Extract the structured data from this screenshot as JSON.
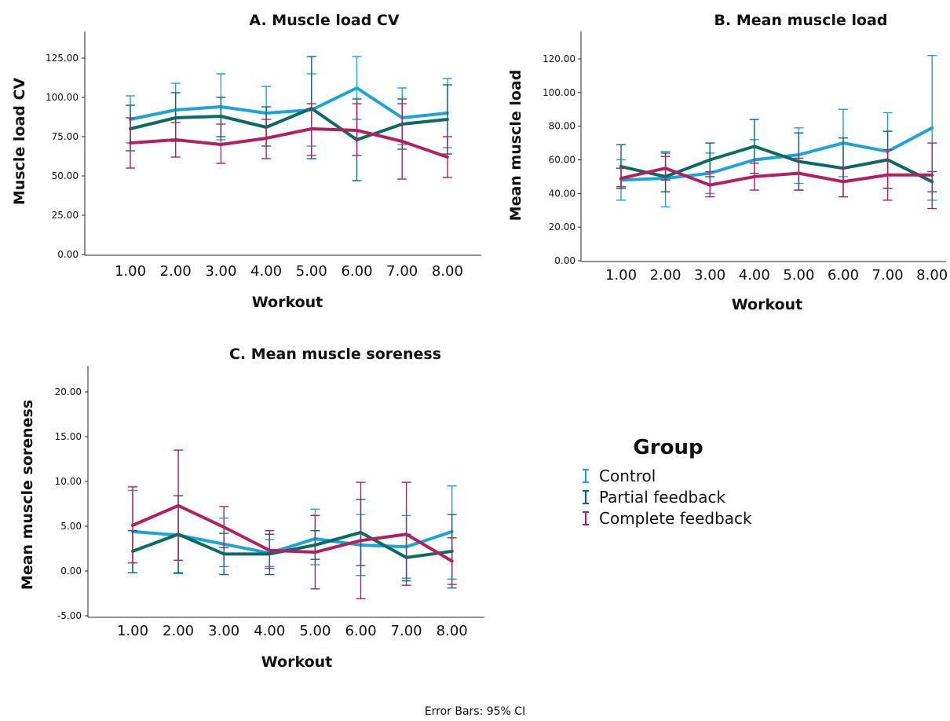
{
  "chart_data": [
    {
      "type": "line",
      "title": "A. Muscle load CV",
      "xlabel": "Workout",
      "ylabel": "Muscle load CV",
      "categories": [
        "1.00",
        "2.00",
        "3.00",
        "4.00",
        "5.00",
        "6.00",
        "7.00",
        "8.00"
      ],
      "yticks": [
        "0.00",
        "25.00",
        "50.00",
        "75.00",
        "100.00",
        "125.00"
      ],
      "ylim": [
        0,
        138
      ],
      "series": [
        {
          "name": "Control",
          "color": "#1aa3dd",
          "values": [
            86,
            92,
            94,
            90,
            92,
            106,
            87,
            90
          ],
          "ci_low": [
            71,
            73,
            73,
            74,
            69,
            86,
            70,
            68
          ],
          "ci_high": [
            101,
            109,
            115,
            107,
            115,
            126,
            106,
            112
          ]
        },
        {
          "name": "Partial feedback",
          "color": "#0a6b63",
          "values": [
            80,
            87,
            88,
            81,
            93,
            73,
            83,
            86
          ],
          "ci_low": [
            66,
            72,
            75,
            69,
            61,
            47,
            67,
            64
          ],
          "ci_high": [
            95,
            103,
            100,
            94,
            126,
            99,
            99,
            108
          ]
        },
        {
          "name": "Complete feedback",
          "color": "#b3205f",
          "values": [
            71,
            73,
            70,
            74,
            80,
            79,
            72,
            62
          ],
          "ci_low": [
            55,
            62,
            58,
            61,
            63,
            63,
            48,
            49
          ],
          "ci_high": [
            87,
            84,
            83,
            86,
            96,
            96,
            96,
            75
          ]
        }
      ]
    },
    {
      "type": "line",
      "title": "B. Mean muscle load",
      "xlabel": "Workout",
      "ylabel": "Mean muscle load",
      "categories": [
        "1.00",
        "2.00",
        "3.00",
        "4.00",
        "5.00",
        "6.00",
        "7.00",
        "8.00"
      ],
      "yticks": [
        "0.00",
        "20.00",
        "40.00",
        "60.00",
        "80.00",
        "100.00",
        "120.00"
      ],
      "ylim": [
        0,
        135
      ],
      "series": [
        {
          "name": "Control",
          "color": "#1aa3dd",
          "values": [
            48,
            49,
            52,
            60,
            63,
            70,
            65,
            79
          ],
          "ci_low": [
            36,
            32,
            40,
            50,
            46,
            50,
            43,
            36
          ],
          "ci_high": [
            60,
            65,
            64,
            72,
            79,
            90,
            88,
            122
          ]
        },
        {
          "name": "Partial feedback",
          "color": "#0a6b63",
          "values": [
            56,
            50,
            60,
            68,
            59,
            55,
            60,
            47
          ],
          "ci_low": [
            43,
            41,
            50,
            52,
            42,
            38,
            43,
            41
          ],
          "ci_high": [
            69,
            64,
            70,
            84,
            76,
            73,
            77,
            53
          ]
        },
        {
          "name": "Complete feedback",
          "color": "#b3205f",
          "values": [
            49,
            55,
            45,
            50,
            52,
            47,
            51,
            51
          ],
          "ci_low": [
            44,
            48,
            38,
            42,
            42,
            38,
            36,
            31
          ],
          "ci_high": [
            55,
            62,
            53,
            58,
            61,
            55,
            66,
            70
          ]
        }
      ]
    },
    {
      "type": "line",
      "title": "C. Mean muscle soreness",
      "xlabel": "Workout",
      "ylabel": "Mean muscle soreness",
      "categories": [
        "1.00",
        "2.00",
        "3.00",
        "4.00",
        "5.00",
        "6.00",
        "7.00",
        "8.00"
      ],
      "yticks": [
        "-5.00",
        "0.00",
        "5.00",
        "10.00",
        "15.00",
        "20.00"
      ],
      "ylim": [
        -5,
        23
      ],
      "series": [
        {
          "name": "Control",
          "color": "#1aa3dd",
          "values": [
            4.4,
            4.0,
            3.0,
            2.0,
            3.6,
            2.9,
            2.7,
            4.4
          ],
          "ci_low": [
            -0.2,
            -0.3,
            0.5,
            0.5,
            0.7,
            -0.5,
            -0.8,
            -0.9
          ],
          "ci_high": [
            9.0,
            8.4,
            5.9,
            3.5,
            6.9,
            6.3,
            6.2,
            9.5
          ]
        },
        {
          "name": "Partial feedback",
          "color": "#0a6b63",
          "values": [
            2.2,
            4.1,
            1.9,
            1.9,
            2.9,
            4.3,
            1.5,
            2.2
          ],
          "ci_low": [
            -0.2,
            -0.2,
            -0.4,
            -0.4,
            1.3,
            0.6,
            -1.1,
            -1.9
          ],
          "ci_high": [
            4.5,
            8.4,
            4.2,
            4.1,
            4.5,
            8.0,
            4.1,
            6.3
          ]
        },
        {
          "name": "Complete feedback",
          "color": "#b3205f",
          "values": [
            5.1,
            7.3,
            4.9,
            2.3,
            2.1,
            3.4,
            4.1,
            1.1
          ],
          "ci_low": [
            0.9,
            1.2,
            2.6,
            0.3,
            -2.0,
            -3.1,
            -1.6,
            -1.5
          ],
          "ci_high": [
            9.4,
            13.5,
            7.2,
            4.5,
            6.2,
            9.9,
            9.9,
            3.7
          ]
        }
      ]
    }
  ],
  "legend": {
    "title": "Group",
    "items": [
      {
        "label": "Control",
        "color": "#1aa3dd"
      },
      {
        "label": "Partial feedback",
        "color": "#0a6b63"
      },
      {
        "label": "Complete feedback",
        "color": "#b3205f"
      }
    ]
  },
  "footer": "Error Bars: 95% CI"
}
